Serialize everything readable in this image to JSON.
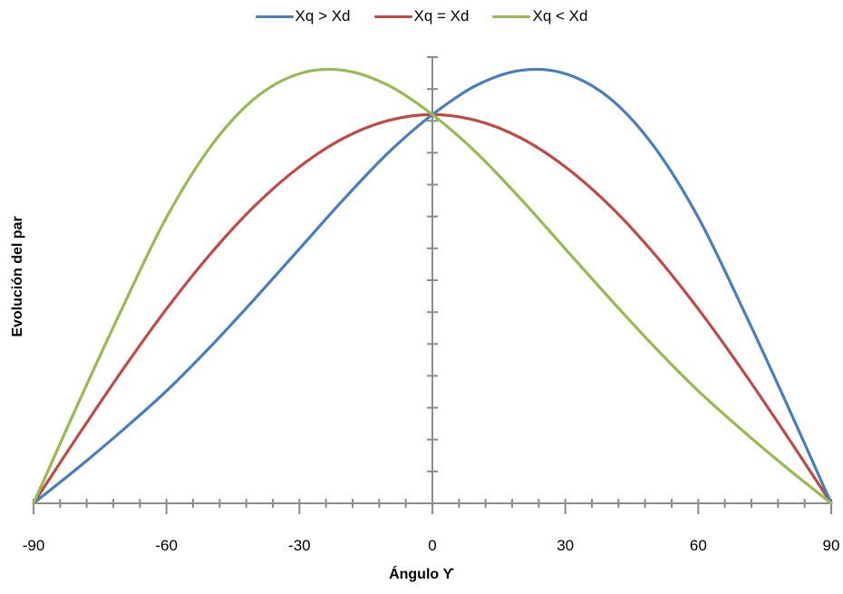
{
  "chart_data": {
    "type": "line",
    "xlabel": "Ángulo ϒ",
    "ylabel": "Evolución del par",
    "xlim": [
      -90,
      90
    ],
    "ylim": [
      0,
      1.35
    ],
    "x_ticks": [
      -90,
      -60,
      -30,
      0,
      30,
      60,
      90
    ],
    "x_tick_labels": [
      "-90",
      "-60",
      "-30",
      "0",
      "30",
      "60",
      "90"
    ],
    "legend_placement": "top",
    "grid": false,
    "x": [
      -90,
      -80,
      -70,
      -60,
      -50,
      -40,
      -30,
      -20,
      -10,
      0,
      10,
      20,
      30,
      40,
      50,
      60,
      70,
      80,
      90
    ],
    "series": [
      {
        "name": "Xq > Xd",
        "color": "#4a7ebb",
        "values": [
          0.0,
          0.107,
          0.22,
          0.34,
          0.475,
          0.62,
          0.77,
          0.92,
          1.06,
          1.176,
          1.265,
          1.31,
          1.3,
          1.226,
          1.08,
          0.865,
          0.59,
          0.3,
          0.0
        ]
      },
      {
        "name": "Xq = Xd",
        "color": "#be4b48",
        "values": [
          0.0,
          0.204,
          0.402,
          0.588,
          0.756,
          0.901,
          1.018,
          1.105,
          1.158,
          1.176,
          1.158,
          1.105,
          1.018,
          0.901,
          0.756,
          0.588,
          0.402,
          0.204,
          0.0
        ]
      },
      {
        "name": "Xq < Xd",
        "color": "#98b954",
        "values": [
          0.0,
          0.3,
          0.59,
          0.865,
          1.08,
          1.226,
          1.3,
          1.31,
          1.265,
          1.176,
          1.06,
          0.92,
          0.77,
          0.62,
          0.475,
          0.34,
          0.22,
          0.107,
          0.0
        ]
      }
    ]
  }
}
